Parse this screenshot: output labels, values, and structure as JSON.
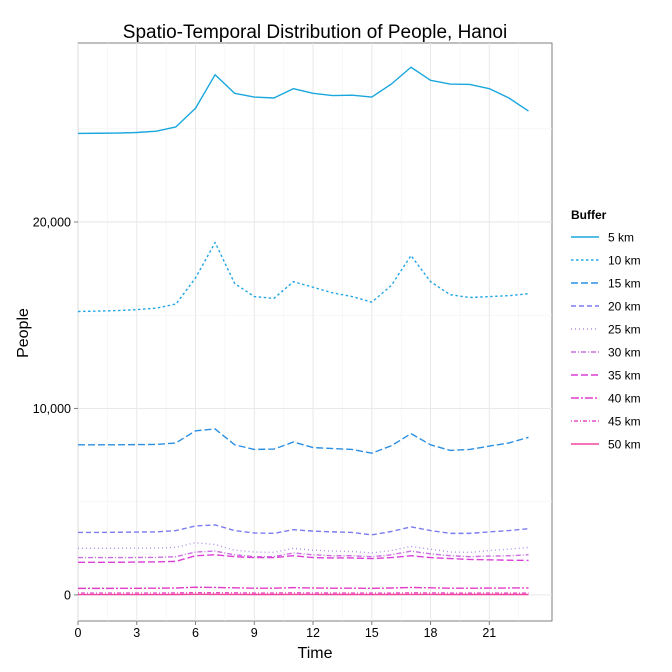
{
  "chart_data": {
    "type": "line",
    "title": "Spatio-Temporal Distribution of People, Hanoi",
    "xlabel": "Time",
    "ylabel": "People",
    "xlim": [
      0,
      24.2
    ],
    "ylim": [
      -1400,
      29600
    ],
    "x_ticks": [
      0,
      3,
      6,
      9,
      12,
      15,
      18,
      21
    ],
    "x_tick_labels": [
      "0",
      "3",
      "6",
      "9",
      "12",
      "15",
      "18",
      "21"
    ],
    "y_ticks": [
      0,
      10000,
      20000
    ],
    "y_tick_labels": [
      "0",
      "10,000",
      "20,000"
    ],
    "grid": true,
    "legend": {
      "title": "Buffer",
      "position": "right"
    },
    "x": [
      0,
      1,
      2,
      3,
      4,
      5,
      6,
      7,
      8,
      9,
      10,
      11,
      12,
      13,
      14,
      15,
      16,
      17,
      18,
      19,
      20,
      21,
      22,
      23
    ],
    "series": [
      {
        "name": "5 km",
        "color": "#1aa7dd",
        "dash": "solid",
        "values": [
          24750,
          24760,
          24770,
          24800,
          24870,
          25100,
          26100,
          27900,
          26900,
          26700,
          26650,
          27150,
          26900,
          26780,
          26800,
          26700,
          27400,
          28300,
          27600,
          27400,
          27380,
          27150,
          26650,
          25950
        ]
      },
      {
        "name": "10 km",
        "color": "#22a6e6",
        "dash": "short-dash",
        "values": [
          15200,
          15220,
          15250,
          15300,
          15380,
          15600,
          17000,
          18900,
          16700,
          16000,
          15900,
          16800,
          16500,
          16200,
          16000,
          15700,
          16600,
          18200,
          16800,
          16100,
          15950,
          16000,
          16050,
          16150
        ]
      },
      {
        "name": "15 km",
        "color": "#2b8fe3",
        "dash": "long-dash",
        "values": [
          8050,
          8050,
          8050,
          8060,
          8070,
          8150,
          8800,
          8900,
          8050,
          7800,
          7820,
          8200,
          7900,
          7850,
          7800,
          7600,
          8000,
          8650,
          8050,
          7750,
          7800,
          7980,
          8150,
          8450
        ]
      },
      {
        "name": "20 km",
        "color": "#7a7cef",
        "dash": "medium-dash",
        "values": [
          3350,
          3350,
          3360,
          3370,
          3380,
          3450,
          3700,
          3750,
          3450,
          3320,
          3300,
          3500,
          3420,
          3380,
          3350,
          3220,
          3400,
          3650,
          3450,
          3300,
          3300,
          3380,
          3450,
          3550
        ]
      },
      {
        "name": "25 km",
        "color": "#b290e8",
        "dash": "dotted",
        "values": [
          2500,
          2500,
          2500,
          2505,
          2510,
          2550,
          2800,
          2700,
          2400,
          2300,
          2280,
          2500,
          2400,
          2350,
          2330,
          2250,
          2380,
          2600,
          2450,
          2300,
          2280,
          2380,
          2450,
          2550
        ]
      },
      {
        "name": "30 km",
        "color": "#cc6fe0",
        "dash": "dash-dot",
        "values": [
          2000,
          2000,
          2000,
          2005,
          2010,
          2050,
          2300,
          2350,
          2150,
          2050,
          2050,
          2250,
          2150,
          2100,
          2100,
          2050,
          2150,
          2350,
          2200,
          2100,
          2050,
          2080,
          2100,
          2150
        ]
      },
      {
        "name": "35 km",
        "color": "#dc3fd7",
        "dash": "long-dash",
        "values": [
          1750,
          1750,
          1750,
          1760,
          1770,
          1800,
          2100,
          2150,
          2050,
          2000,
          2000,
          2100,
          2000,
          1980,
          1980,
          1950,
          2000,
          2100,
          2000,
          1950,
          1900,
          1880,
          1860,
          1850
        ]
      },
      {
        "name": "40 km",
        "color": "#e13ec9",
        "dash": "long-dash-dot",
        "values": [
          350,
          350,
          350,
          355,
          360,
          370,
          410,
          400,
          380,
          360,
          360,
          390,
          370,
          360,
          360,
          350,
          370,
          400,
          380,
          360,
          360,
          365,
          370,
          375
        ]
      },
      {
        "name": "45 km",
        "color": "#e64cc6",
        "dash": "dot-dash",
        "values": [
          100,
          100,
          100,
          100,
          100,
          105,
          120,
          120,
          110,
          100,
          100,
          110,
          105,
          100,
          100,
          95,
          100,
          110,
          105,
          100,
          100,
          100,
          100,
          100
        ]
      },
      {
        "name": "50 km",
        "color": "#f0479e",
        "dash": "solid",
        "values": [
          20,
          20,
          20,
          20,
          20,
          22,
          30,
          28,
          25,
          22,
          22,
          26,
          24,
          22,
          22,
          20,
          22,
          26,
          24,
          22,
          22,
          22,
          22,
          22
        ]
      }
    ]
  }
}
